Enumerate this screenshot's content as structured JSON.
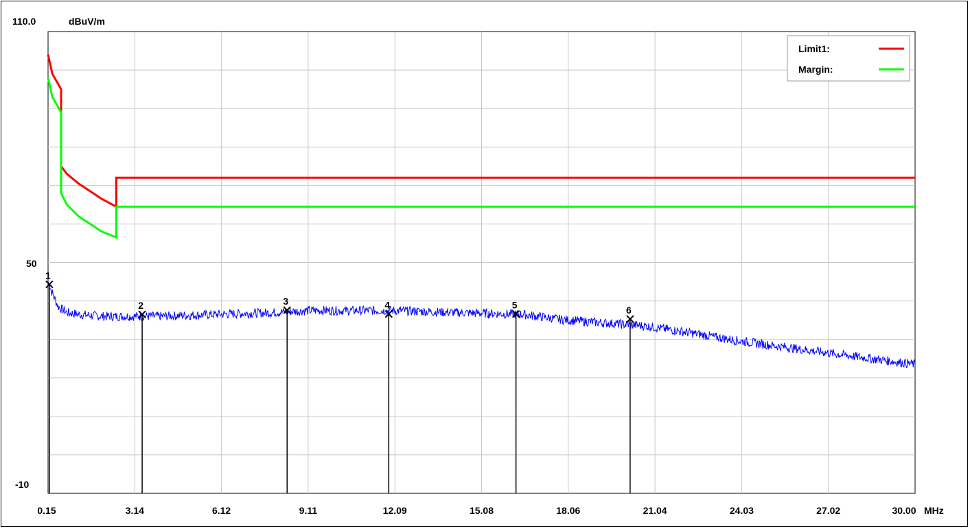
{
  "chart_data": {
    "type": "line",
    "y_axis_top_label": "110.0",
    "y_axis_unit": "dBuV/m",
    "y_tick_labels": [
      "50",
      "-10"
    ],
    "x_unit": "MHz",
    "x_tick_labels": [
      "0.15",
      "3.14",
      "6.12",
      "9.11",
      "12.09",
      "15.08",
      "18.06",
      "21.04",
      "24.03",
      "27.02",
      "30.00"
    ],
    "xlim": [
      0.15,
      30.0
    ],
    "ylim": [
      -10,
      110
    ],
    "grid": true,
    "legend_position": "top-right",
    "legend": [
      {
        "name": "Limit1:",
        "color": "#ff0000"
      },
      {
        "name": "Margin:",
        "color": "#00ff00"
      }
    ],
    "series": [
      {
        "name": "Limit1:",
        "color": "#ff0000",
        "x": [
          0.15,
          0.3,
          0.45,
          0.6,
          0.6,
          0.8,
          1.2,
          1.6,
          2.0,
          2.5,
          2.5,
          30.0
        ],
        "y": [
          104,
          99,
          97,
          95,
          75,
          73,
          70.5,
          68.5,
          66.5,
          64.5,
          72,
          72
        ]
      },
      {
        "name": "Margin:",
        "color": "#00ff00",
        "x": [
          0.15,
          0.3,
          0.45,
          0.6,
          0.6,
          0.8,
          1.2,
          1.6,
          2.0,
          2.5,
          2.5,
          30.0
        ],
        "y": [
          98,
          93,
          91,
          89,
          68,
          65,
          62,
          60,
          58,
          56.5,
          64.5,
          64.5
        ]
      },
      {
        "color": "#0000ff",
        "x": [
          0.15,
          0.3,
          0.5,
          0.8,
          1.2,
          2.0,
          3.14,
          4.0,
          6.0,
          8.0,
          9.11,
          10.0,
          12.09,
          14.0,
          16.5,
          18.0,
          20.7,
          22.0,
          24.03,
          26.0,
          28.0,
          30.0
        ],
        "y": [
          45,
          42,
          38.5,
          37,
          36.5,
          36,
          36,
          36,
          36.5,
          37,
          37.5,
          37.5,
          37.5,
          37,
          36.5,
          35,
          33.5,
          32,
          29.5,
          27.5,
          25.5,
          23.5
        ]
      }
    ],
    "markers": [
      {
        "label": "1",
        "x": 0.195,
        "y": 44.3
      },
      {
        "label": "2",
        "x": 3.39,
        "y": 36.5
      },
      {
        "label": "3",
        "x": 8.38,
        "y": 37.6
      },
      {
        "label": "4",
        "x": 11.88,
        "y": 36.6
      },
      {
        "label": "5",
        "x": 16.26,
        "y": 36.6
      },
      {
        "label": "6",
        "x": 20.19,
        "y": 35.3
      }
    ]
  }
}
